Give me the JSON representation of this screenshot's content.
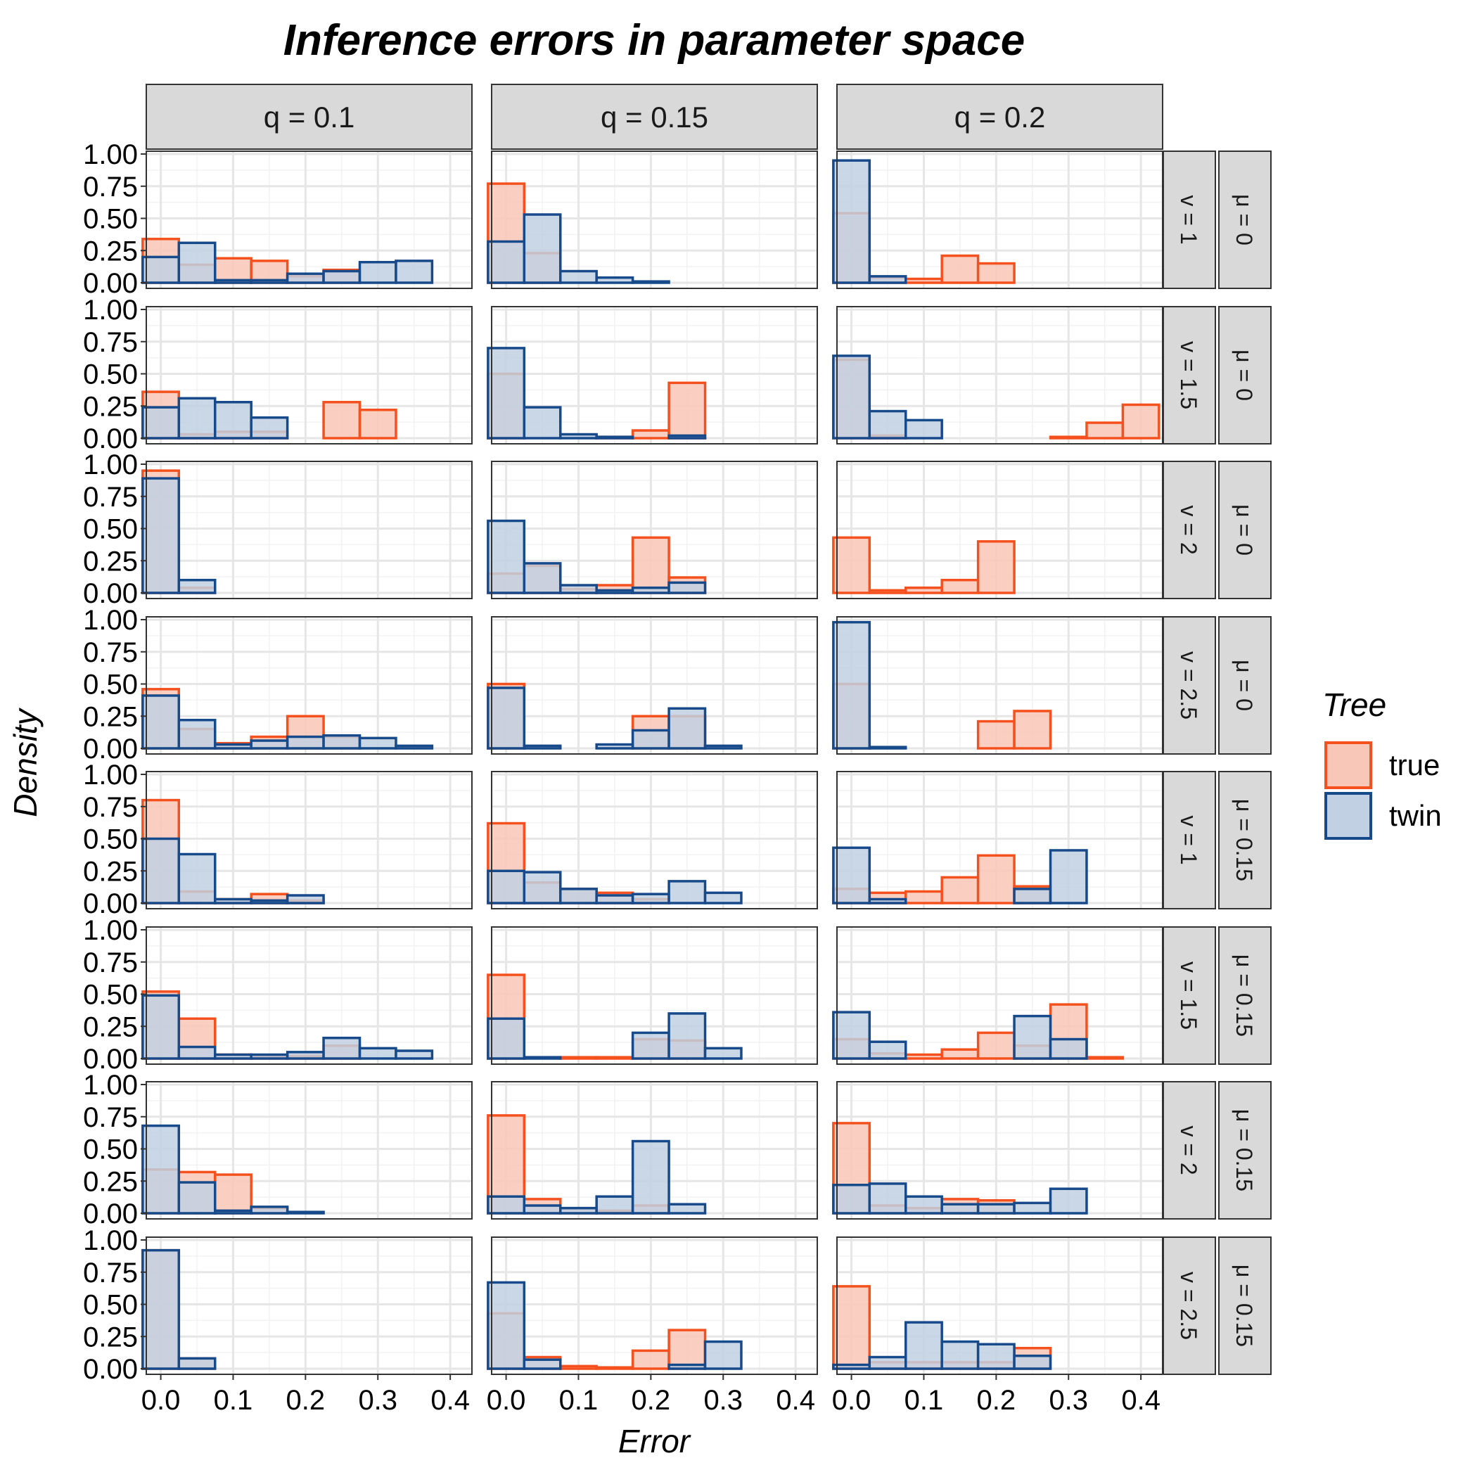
{
  "chart_data": {
    "type": "histogram-facet-grid",
    "title": "Inference errors in parameter space",
    "xlabel": "Error",
    "ylabel": "Density",
    "xlim": [
      -0.02,
      0.43
    ],
    "ylim": [
      0,
      1.0
    ],
    "x_ticks": [
      "0.0",
      "0.1",
      "0.2",
      "0.3",
      "0.4"
    ],
    "x_tick_values": [
      0,
      0.1,
      0.2,
      0.3,
      0.4
    ],
    "y_ticks": [
      "0.00",
      "0.25",
      "0.50",
      "0.75",
      "1.00"
    ],
    "y_tick_values": [
      0,
      0.25,
      0.5,
      0.75,
      1.0
    ],
    "bin_width": 0.05,
    "bin_centers": [
      0,
      0.05,
      0.1,
      0.15,
      0.2,
      0.25,
      0.3,
      0.35,
      0.4
    ],
    "grid": true,
    "legend": {
      "title": "Tree",
      "position": "right",
      "entries": [
        {
          "label": "true",
          "fill": "#f9c7b7",
          "stroke": "#f4511e"
        },
        {
          "label": "twin",
          "fill": "#c1d0e2",
          "stroke": "#174a8b"
        }
      ]
    },
    "col_labels": [
      "q = 0.1",
      "q = 0.15",
      "q = 0.2"
    ],
    "row_labels_v": [
      "v = 1",
      "v = 1.5",
      "v = 2",
      "v = 2.5",
      "v = 1",
      "v = 1.5",
      "v = 2",
      "v = 2.5"
    ],
    "row_labels_mu": [
      "μ = 0",
      "μ = 0",
      "μ = 0",
      "μ = 0",
      "μ = 0.15",
      "μ = 0.15",
      "μ = 0.15",
      "μ = 0.15"
    ],
    "series_names": [
      "true",
      "twin"
    ],
    "panels": [
      [
        {
          "true": [
            0.34,
            0.14,
            0.19,
            0.17,
            0.05,
            0.1,
            0,
            0,
            0
          ],
          "twin": [
            0.2,
            0.31,
            0.02,
            0.02,
            0.07,
            0.09,
            0.16,
            0.17,
            0
          ]
        },
        {
          "true": [
            0.77,
            0.23,
            0,
            0,
            0,
            0,
            0,
            0,
            0
          ],
          "twin": [
            0.32,
            0.53,
            0.09,
            0.04,
            0.01,
            0,
            0,
            0,
            0
          ]
        },
        {
          "true": [
            0.54,
            0.04,
            0.03,
            0.21,
            0.15,
            0,
            0,
            0,
            0
          ],
          "twin": [
            0.95,
            0.05,
            0,
            0,
            0,
            0,
            0,
            0,
            0
          ]
        }
      ],
      [
        {
          "true": [
            0.36,
            0.03,
            0.05,
            0.05,
            0,
            0.28,
            0.22,
            0,
            0
          ],
          "twin": [
            0.24,
            0.31,
            0.28,
            0.16,
            0,
            0,
            0,
            0,
            0
          ]
        },
        {
          "true": [
            0.5,
            0,
            0,
            0.01,
            0.06,
            0.43,
            0,
            0,
            0
          ],
          "twin": [
            0.7,
            0.24,
            0.03,
            0.01,
            0,
            0.02,
            0,
            0,
            0
          ]
        },
        {
          "true": [
            0.61,
            0.02,
            0,
            0,
            0,
            0,
            0.01,
            0.12,
            0.26
          ],
          "twin": [
            0.64,
            0.21,
            0.14,
            0,
            0,
            0,
            0,
            0,
            0
          ]
        }
      ],
      [
        {
          "true": [
            0.95,
            0.04,
            0,
            0,
            0,
            0,
            0,
            0,
            0
          ],
          "twin": [
            0.89,
            0.1,
            0,
            0,
            0,
            0,
            0,
            0,
            0
          ]
        },
        {
          "true": [
            0.15,
            0.21,
            0.03,
            0.06,
            0.43,
            0.12,
            0,
            0,
            0
          ],
          "twin": [
            0.56,
            0.23,
            0.06,
            0.02,
            0.04,
            0.08,
            0,
            0,
            0
          ]
        },
        {
          "true": [
            0.43,
            0.02,
            0.04,
            0.1,
            0.4,
            0,
            0,
            0,
            0
          ],
          "twin": [
            0,
            0,
            0,
            0,
            0,
            0,
            0,
            0,
            0
          ]
        }
      ],
      [
        {
          "true": [
            0.46,
            0.15,
            0.04,
            0.09,
            0.25,
            0.09,
            0,
            0,
            0
          ],
          "twin": [
            0.41,
            0.22,
            0.03,
            0.06,
            0.09,
            0.1,
            0.08,
            0.02,
            0
          ]
        },
        {
          "true": [
            0.5,
            0,
            0,
            0,
            0.25,
            0.25,
            0,
            0,
            0
          ],
          "twin": [
            0.47,
            0.02,
            0,
            0.03,
            0.14,
            0.31,
            0.02,
            0,
            0
          ]
        },
        {
          "true": [
            0.5,
            0,
            0,
            0,
            0.21,
            0.29,
            0,
            0,
            0
          ],
          "twin": [
            0.98,
            0.01,
            0,
            0,
            0,
            0,
            0,
            0,
            0
          ]
        }
      ],
      [
        {
          "true": [
            0.8,
            0.09,
            0.03,
            0.07,
            0.02,
            0,
            0,
            0,
            0
          ],
          "twin": [
            0.5,
            0.38,
            0.03,
            0.02,
            0.06,
            0,
            0,
            0,
            0
          ]
        },
        {
          "true": [
            0.62,
            0.16,
            0.11,
            0.08,
            0.03,
            0,
            0,
            0,
            0
          ],
          "twin": [
            0.25,
            0.24,
            0.11,
            0.06,
            0.07,
            0.17,
            0.08,
            0,
            0
          ]
        },
        {
          "true": [
            0.11,
            0.08,
            0.09,
            0.2,
            0.37,
            0.13,
            0,
            0,
            0
          ],
          "twin": [
            0.43,
            0.03,
            0,
            0,
            0,
            0.11,
            0.41,
            0,
            0
          ]
        }
      ],
      [
        {
          "true": [
            0.52,
            0.31,
            0.03,
            0.02,
            0.02,
            0.1,
            0,
            0,
            0
          ],
          "twin": [
            0.49,
            0.09,
            0.03,
            0.03,
            0.05,
            0.16,
            0.08,
            0.06,
            0
          ]
        },
        {
          "true": [
            0.65,
            0,
            0.01,
            0.01,
            0.15,
            0.14,
            0,
            0,
            0
          ],
          "twin": [
            0.31,
            0.01,
            0,
            0,
            0.2,
            0.35,
            0.08,
            0,
            0
          ]
        },
        {
          "true": [
            0.15,
            0.04,
            0.03,
            0.07,
            0.2,
            0.1,
            0.42,
            0.01,
            0
          ],
          "twin": [
            0.36,
            0.13,
            0,
            0,
            0,
            0.33,
            0.15,
            0,
            0
          ]
        }
      ],
      [
        {
          "true": [
            0.34,
            0.32,
            0.3,
            0.04,
            0,
            0,
            0,
            0,
            0
          ],
          "twin": [
            0.68,
            0.24,
            0.02,
            0.05,
            0.01,
            0,
            0,
            0,
            0
          ]
        },
        {
          "true": [
            0.76,
            0.11,
            0.04,
            0.02,
            0.06,
            0,
            0,
            0,
            0
          ],
          "twin": [
            0.13,
            0.06,
            0.04,
            0.13,
            0.56,
            0.07,
            0,
            0,
            0
          ]
        },
        {
          "true": [
            0.7,
            0.06,
            0.04,
            0.11,
            0.1,
            0,
            0,
            0,
            0
          ],
          "twin": [
            0.22,
            0.23,
            0.13,
            0.07,
            0.07,
            0.08,
            0.19,
            0,
            0
          ]
        }
      ],
      [
        {
          "true": [
            0.92,
            0.08,
            0,
            0,
            0,
            0,
            0,
            0,
            0
          ],
          "twin": [
            0.92,
            0.08,
            0,
            0,
            0,
            0,
            0,
            0,
            0
          ]
        },
        {
          "true": [
            0.43,
            0.09,
            0.02,
            0.01,
            0.14,
            0.3,
            0,
            0,
            0
          ],
          "twin": [
            0.67,
            0.07,
            0,
            0,
            0,
            0.03,
            0.21,
            0,
            0
          ]
        },
        {
          "true": [
            0.64,
            0.05,
            0.05,
            0.05,
            0.05,
            0.16,
            0,
            0,
            0
          ],
          "twin": [
            0.03,
            0.09,
            0.36,
            0.21,
            0.19,
            0.1,
            0,
            0,
            0
          ]
        }
      ]
    ]
  }
}
